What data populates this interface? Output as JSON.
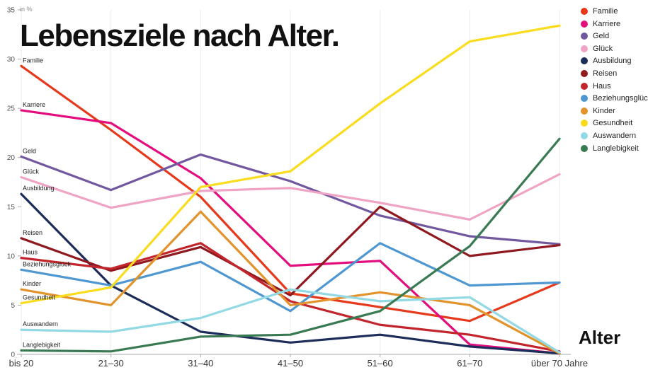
{
  "title": "Lebensziele nach Alter.",
  "y_axis_unit": "in %",
  "x_axis_title": "Alter",
  "chart_data": {
    "type": "line",
    "title": "Lebensziele nach Alter.",
    "ylabel": "in %",
    "xlabel": "Alter",
    "ylim": [
      0,
      35
    ],
    "yticks": [
      0,
      5,
      10,
      15,
      20,
      25,
      30,
      35
    ],
    "grid": "faint-vertical",
    "legend_position": "top-right",
    "categories": [
      "bis 20",
      "21–30",
      "31–40",
      "41–50",
      "51–60",
      "61–70",
      "über 70 Jahre"
    ],
    "series": [
      {
        "name": "Familie",
        "color": "#e6391b",
        "values": [
          29.3,
          22.8,
          16.0,
          6.2,
          4.8,
          3.4,
          7.3
        ]
      },
      {
        "name": "Karriere",
        "color": "#e40d7e",
        "values": [
          24.8,
          23.5,
          17.9,
          9.0,
          9.5,
          1.0,
          0.1
        ]
      },
      {
        "name": "Geld",
        "color": "#71589f",
        "values": [
          20.1,
          16.7,
          20.3,
          17.6,
          14.1,
          12.0,
          11.2
        ]
      },
      {
        "name": "Glück",
        "color": "#efa3c5",
        "values": [
          18.0,
          14.9,
          16.6,
          16.9,
          15.4,
          13.7,
          18.3
        ]
      },
      {
        "name": "Ausbildung",
        "color": "#1c2d5a",
        "values": [
          16.3,
          7.0,
          2.3,
          1.2,
          2.0,
          0.8,
          0.1
        ]
      },
      {
        "name": "Reisen",
        "color": "#8f191f",
        "values": [
          11.8,
          8.5,
          10.9,
          6.0,
          15.0,
          10.0,
          11.1
        ]
      },
      {
        "name": "Haus",
        "color": "#c2252b",
        "values": [
          9.8,
          8.7,
          11.3,
          5.4,
          3.0,
          2.0,
          0.3
        ]
      },
      {
        "name": "Beziehungsglück",
        "color": "#4e97d1",
        "values": [
          8.6,
          7.0,
          9.4,
          4.4,
          11.3,
          7.0,
          7.3
        ]
      },
      {
        "name": "Kinder",
        "color": "#e2932b",
        "values": [
          6.6,
          5.0,
          14.5,
          5.0,
          6.3,
          5.0,
          0.1
        ]
      },
      {
        "name": "Gesundheit",
        "color": "#f9dc1e",
        "values": [
          5.2,
          6.8,
          17.0,
          18.6,
          25.5,
          31.8,
          33.4
        ]
      },
      {
        "name": "Auswandern",
        "color": "#92d9e4",
        "values": [
          2.5,
          2.3,
          3.7,
          6.6,
          5.4,
          5.8,
          0.2
        ]
      },
      {
        "name": "Langlebigkeit",
        "color": "#397a52",
        "values": [
          0.4,
          0.3,
          1.8,
          2.0,
          4.4,
          11.0,
          21.9
        ]
      }
    ]
  }
}
